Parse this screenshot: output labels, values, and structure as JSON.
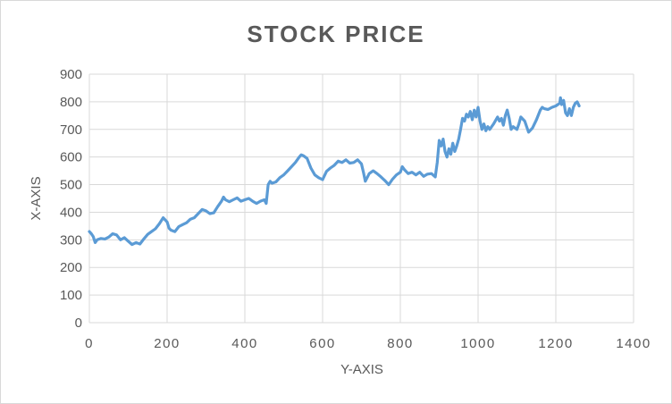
{
  "chart_data": {
    "type": "line",
    "title": "STOCK PRICE",
    "xlabel": "Y-AXIS",
    "ylabel": "X-AXIS",
    "xlim": [
      0,
      1400
    ],
    "ylim": [
      0,
      900
    ],
    "xticks": [
      "0",
      "200",
      "400",
      "600",
      "800",
      "1000",
      "1200",
      "1400"
    ],
    "yticks": [
      "0",
      "100",
      "200",
      "300",
      "400",
      "500",
      "600",
      "700",
      "800",
      "900"
    ],
    "grid": true,
    "legend": "none",
    "series": [
      {
        "color": "#5b9bd5",
        "points": [
          [
            0,
            330
          ],
          [
            5,
            322
          ],
          [
            10,
            312
          ],
          [
            15,
            290
          ],
          [
            20,
            300
          ],
          [
            30,
            305
          ],
          [
            40,
            303
          ],
          [
            50,
            310
          ],
          [
            60,
            322
          ],
          [
            70,
            318
          ],
          [
            80,
            300
          ],
          [
            90,
            308
          ],
          [
            100,
            295
          ],
          [
            110,
            283
          ],
          [
            120,
            290
          ],
          [
            130,
            285
          ],
          [
            140,
            303
          ],
          [
            150,
            320
          ],
          [
            160,
            330
          ],
          [
            170,
            340
          ],
          [
            180,
            358
          ],
          [
            190,
            380
          ],
          [
            200,
            365
          ],
          [
            205,
            342
          ],
          [
            210,
            335
          ],
          [
            220,
            330
          ],
          [
            230,
            348
          ],
          [
            240,
            355
          ],
          [
            250,
            362
          ],
          [
            260,
            375
          ],
          [
            270,
            380
          ],
          [
            280,
            395
          ],
          [
            290,
            410
          ],
          [
            300,
            405
          ],
          [
            310,
            395
          ],
          [
            320,
            398
          ],
          [
            330,
            420
          ],
          [
            340,
            440
          ],
          [
            345,
            455
          ],
          [
            350,
            445
          ],
          [
            360,
            438
          ],
          [
            370,
            445
          ],
          [
            380,
            452
          ],
          [
            390,
            440
          ],
          [
            400,
            445
          ],
          [
            410,
            450
          ],
          [
            420,
            440
          ],
          [
            430,
            432
          ],
          [
            440,
            440
          ],
          [
            450,
            445
          ],
          [
            455,
            432
          ],
          [
            460,
            500
          ],
          [
            465,
            512
          ],
          [
            470,
            505
          ],
          [
            480,
            510
          ],
          [
            490,
            525
          ],
          [
            500,
            535
          ],
          [
            510,
            550
          ],
          [
            520,
            565
          ],
          [
            530,
            580
          ],
          [
            540,
            600
          ],
          [
            545,
            608
          ],
          [
            550,
            605
          ],
          [
            560,
            595
          ],
          [
            570,
            560
          ],
          [
            580,
            535
          ],
          [
            590,
            525
          ],
          [
            600,
            518
          ],
          [
            610,
            548
          ],
          [
            620,
            560
          ],
          [
            630,
            570
          ],
          [
            640,
            585
          ],
          [
            650,
            580
          ],
          [
            660,
            590
          ],
          [
            670,
            578
          ],
          [
            680,
            580
          ],
          [
            690,
            590
          ],
          [
            700,
            575
          ],
          [
            705,
            545
          ],
          [
            710,
            512
          ],
          [
            720,
            540
          ],
          [
            730,
            550
          ],
          [
            740,
            540
          ],
          [
            750,
            528
          ],
          [
            760,
            515
          ],
          [
            770,
            500
          ],
          [
            780,
            520
          ],
          [
            790,
            535
          ],
          [
            800,
            545
          ],
          [
            805,
            565
          ],
          [
            810,
            555
          ],
          [
            820,
            540
          ],
          [
            830,
            545
          ],
          [
            840,
            535
          ],
          [
            850,
            545
          ],
          [
            860,
            530
          ],
          [
            870,
            538
          ],
          [
            880,
            540
          ],
          [
            890,
            528
          ],
          [
            895,
            580
          ],
          [
            900,
            660
          ],
          [
            905,
            640
          ],
          [
            910,
            665
          ],
          [
            915,
            620
          ],
          [
            920,
            600
          ],
          [
            925,
            630
          ],
          [
            930,
            610
          ],
          [
            935,
            650
          ],
          [
            940,
            620
          ],
          [
            945,
            640
          ],
          [
            950,
            665
          ],
          [
            955,
            700
          ],
          [
            960,
            740
          ],
          [
            965,
            730
          ],
          [
            970,
            755
          ],
          [
            975,
            745
          ],
          [
            980,
            765
          ],
          [
            985,
            735
          ],
          [
            990,
            770
          ],
          [
            995,
            745
          ],
          [
            1000,
            780
          ],
          [
            1005,
            730
          ],
          [
            1010,
            700
          ],
          [
            1015,
            720
          ],
          [
            1020,
            695
          ],
          [
            1025,
            710
          ],
          [
            1030,
            700
          ],
          [
            1040,
            720
          ],
          [
            1050,
            745
          ],
          [
            1055,
            730
          ],
          [
            1060,
            740
          ],
          [
            1065,
            715
          ],
          [
            1070,
            750
          ],
          [
            1075,
            770
          ],
          [
            1080,
            740
          ],
          [
            1085,
            700
          ],
          [
            1090,
            710
          ],
          [
            1100,
            700
          ],
          [
            1105,
            720
          ],
          [
            1110,
            745
          ],
          [
            1120,
            730
          ],
          [
            1130,
            690
          ],
          [
            1140,
            705
          ],
          [
            1150,
            735
          ],
          [
            1160,
            770
          ],
          [
            1165,
            780
          ],
          [
            1170,
            775
          ],
          [
            1180,
            772
          ],
          [
            1190,
            780
          ],
          [
            1200,
            785
          ],
          [
            1205,
            790
          ],
          [
            1210,
            795
          ],
          [
            1212,
            815
          ],
          [
            1215,
            790
          ],
          [
            1220,
            805
          ],
          [
            1225,
            760
          ],
          [
            1230,
            750
          ],
          [
            1235,
            775
          ],
          [
            1240,
            750
          ],
          [
            1245,
            780
          ],
          [
            1250,
            795
          ],
          [
            1255,
            800
          ],
          [
            1260,
            785
          ]
        ]
      }
    ]
  }
}
